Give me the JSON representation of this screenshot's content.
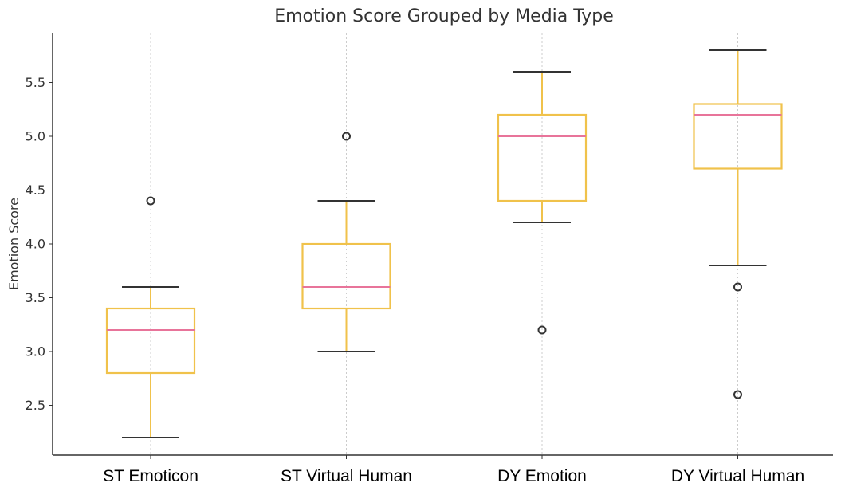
{
  "chart_data": {
    "type": "box",
    "title": "Emotion Score Grouped by Media Type",
    "xlabel": "",
    "ylabel": "Emotion Score",
    "categories": [
      "ST Emoticon",
      "ST Virtual Human",
      "DY Emotion",
      "DY Virtual Human"
    ],
    "y_ticks": [
      "2.5",
      "3.0",
      "3.5",
      "4.0",
      "4.5",
      "5.0",
      "5.5"
    ],
    "ylim": [
      2.1,
      5.98
    ],
    "grid": "vertical dotted",
    "boxes": [
      {
        "category": "ST Emoticon",
        "whisker_low": 2.2,
        "q1": 2.8,
        "median": 3.2,
        "q3": 3.4,
        "whisker_high": 3.6,
        "outliers": [
          4.4
        ]
      },
      {
        "category": "ST Virtual Human",
        "whisker_low": 3.0,
        "q1": 3.4,
        "median": 3.6,
        "q3": 4.0,
        "whisker_high": 4.4,
        "outliers": [
          5.0
        ]
      },
      {
        "category": "DY Emotion",
        "whisker_low": 4.2,
        "q1": 4.4,
        "median": 5.0,
        "q3": 5.2,
        "whisker_high": 5.6,
        "outliers": [
          3.2
        ]
      },
      {
        "category": "DY Virtual Human",
        "whisker_low": 3.8,
        "q1": 4.7,
        "median": 5.2,
        "q3": 5.3,
        "whisker_high": 5.8,
        "outliers": [
          3.6,
          2.6
        ]
      }
    ],
    "colors": {
      "box": "#f0c24b",
      "median": "#e8749a",
      "cap": "#333333",
      "outlier": "#333333",
      "grid": "#cccccc"
    }
  }
}
